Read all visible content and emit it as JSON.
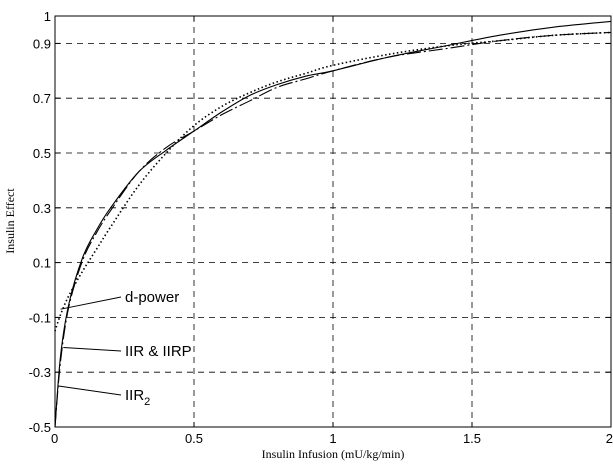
{
  "chart_data": {
    "type": "line",
    "xlabel": "Insulin Infusion (mU/kg/min)",
    "ylabel": "Insulin Effect",
    "xlim": [
      0,
      2
    ],
    "ylim": [
      -0.5,
      1
    ],
    "x_ticks": [
      "0",
      "0.5",
      "1",
      "1.5",
      "2"
    ],
    "y_ticks": [
      "-0.5",
      "-0.3",
      "-0.1",
      "0.1",
      "0.3",
      "0.5",
      "0.7",
      "0.9",
      "1"
    ],
    "grid": "dashed",
    "series": [
      {
        "name": "IIR & IIRP",
        "style": "solid",
        "color": "#000000",
        "x": [
          0,
          0.02,
          0.05,
          0.1,
          0.15,
          0.2,
          0.3,
          0.4,
          0.5,
          0.6,
          0.7,
          0.8,
          0.9,
          1.0,
          1.2,
          1.4,
          1.6,
          1.8,
          2.0
        ],
        "y": [
          -0.5,
          -0.24,
          -0.05,
          0.12,
          0.22,
          0.3,
          0.43,
          0.51,
          0.58,
          0.65,
          0.71,
          0.75,
          0.78,
          0.8,
          0.85,
          0.89,
          0.93,
          0.96,
          0.98
        ]
      },
      {
        "name": "IIR2",
        "style": "dash-dot",
        "color": "#000000",
        "x": [
          0,
          0.02,
          0.05,
          0.1,
          0.15,
          0.2,
          0.3,
          0.4,
          0.5,
          0.6,
          0.7,
          0.8,
          0.9,
          1.0,
          1.2,
          1.4,
          1.6,
          1.8,
          2.0
        ],
        "y": [
          -0.5,
          -0.26,
          -0.06,
          0.11,
          0.21,
          0.29,
          0.43,
          0.52,
          0.58,
          0.64,
          0.69,
          0.74,
          0.77,
          0.8,
          0.85,
          0.88,
          0.91,
          0.93,
          0.94
        ]
      },
      {
        "name": "d-power",
        "style": "dotted",
        "color": "#000000",
        "x": [
          0,
          0.02,
          0.05,
          0.1,
          0.15,
          0.2,
          0.3,
          0.4,
          0.5,
          0.6,
          0.7,
          0.8,
          0.9,
          1.0,
          1.2,
          1.4,
          1.6,
          1.8,
          2.0
        ],
        "y": [
          -0.15,
          -0.09,
          -0.02,
          0.07,
          0.15,
          0.23,
          0.38,
          0.5,
          0.6,
          0.67,
          0.72,
          0.76,
          0.79,
          0.82,
          0.86,
          0.89,
          0.91,
          0.93,
          0.94
        ]
      }
    ],
    "annotations": [
      {
        "name": "d-power",
        "text": "d-power",
        "point": [
          0.02,
          -0.07
        ]
      },
      {
        "name": "IIR & IIRP",
        "text": "IIR & IIRP",
        "point": [
          0.03,
          -0.21
        ]
      },
      {
        "name": "IIR2",
        "text_main": "IIR",
        "text_sub": "2",
        "point": [
          0.01,
          -0.35
        ]
      }
    ]
  }
}
